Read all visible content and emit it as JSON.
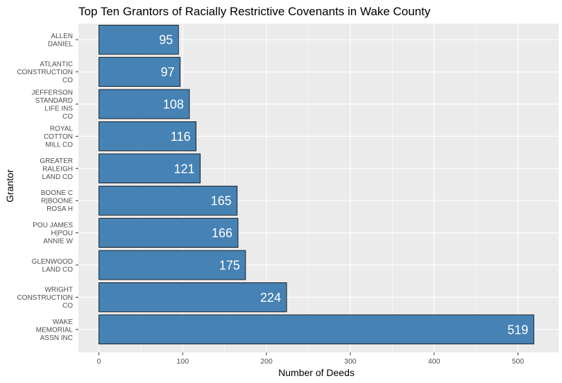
{
  "chart_data": {
    "type": "bar",
    "orientation": "horizontal",
    "title": "Top Ten Grantors of Racially Restrictive Covenants in Wake County",
    "xlabel": "Number of Deeds",
    "ylabel": "Grantor",
    "xlim": [
      0,
      519
    ],
    "xticks": [
      "0",
      "100",
      "200",
      "300",
      "400",
      "500"
    ],
    "grid": true,
    "bar_color": "#4682B4",
    "bar_outline": "#000000",
    "panel_background": "#EBEBEB",
    "gridline_color": "#FFFFFF",
    "categories": [
      [
        "ALLEN",
        "DANIEL"
      ],
      [
        "ATLANTIC",
        "CONSTRUCTION",
        "CO"
      ],
      [
        "JEFFERSON",
        "STANDARD",
        "LIFE INS",
        "CO"
      ],
      [
        "ROYAL",
        "COTTON",
        "MILL CO"
      ],
      [
        "GREATER",
        "RALEIGH",
        "LAND CO"
      ],
      [
        "BOONE C",
        "R|BOONE",
        "ROSA H"
      ],
      [
        "POU JAMES",
        "H|POU",
        "ANNIE W"
      ],
      [
        "GLENWOOD",
        "LAND CO"
      ],
      [
        "WRIGHT",
        "CONSTRUCTION",
        "CO"
      ],
      [
        "WAKE",
        "MEMORIAL",
        "ASSN INC"
      ]
    ],
    "values": [
      95,
      97,
      108,
      116,
      121,
      165,
      166,
      175,
      224,
      519
    ],
    "value_labels": [
      "95",
      "97",
      "108",
      "116",
      "121",
      "165",
      "166",
      "175",
      "224",
      "519"
    ]
  }
}
